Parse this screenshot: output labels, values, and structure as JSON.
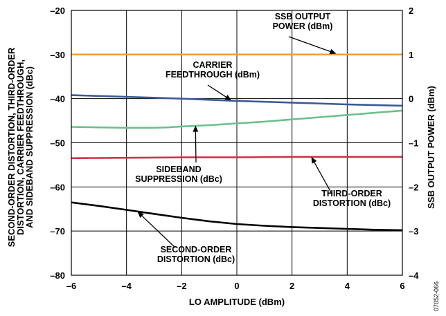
{
  "chart_data": {
    "type": "line",
    "x_axis": {
      "label": "LO AMPLITUDE (dBm)",
      "range": [
        -6,
        6
      ],
      "ticks": [
        -6,
        -4,
        -2,
        0,
        2,
        4,
        6
      ],
      "tick_labels": [
        "–6",
        "–4",
        "–2",
        "0",
        "2",
        "4",
        "6"
      ]
    },
    "y_axis_left": {
      "label_lines": [
        "SECOND-ORDER DISTORTION, THIRD-ORDER",
        "DISTORTION, CARRIER FEEDTHROUGH,",
        "AND SIDEBAND SUPPRESSION (dBc)"
      ],
      "range": [
        -80,
        -20
      ],
      "ticks": [
        -80,
        -70,
        -60,
        -50,
        -40,
        -30,
        -20
      ],
      "tick_labels": [
        "–80",
        "–70",
        "–60",
        "–50",
        "–40",
        "–30",
        "–20"
      ]
    },
    "y_axis_right": {
      "label": "SSB OUTPUT POWER (dBm)",
      "range": [
        -4,
        2
      ],
      "ticks": [
        -4,
        -3,
        -2,
        -1,
        0,
        1,
        2
      ],
      "tick_labels": [
        "–4",
        "–3",
        "–2",
        "–1",
        "0",
        "1",
        "2"
      ]
    },
    "grid": true,
    "series": [
      {
        "name": "SSB OUTPUT POWER (dBm)",
        "axis": "right",
        "color": "#E8A33A",
        "x": [
          -6,
          -4,
          -2,
          0,
          2,
          4,
          6
        ],
        "y": [
          1.0,
          1.0,
          1.0,
          1.0,
          1.0,
          1.0,
          1.0
        ]
      },
      {
        "name": "CARRIER FEEDTHROUGH (dBm)",
        "axis": "left",
        "color": "#3A5A98",
        "x": [
          -6,
          -4,
          -2,
          0,
          2,
          4,
          6
        ],
        "y": [
          -39.2,
          -39.6,
          -40.0,
          -40.5,
          -40.9,
          -41.3,
          -41.6
        ]
      },
      {
        "name": "SIDEBAND SUPPRESSION (dBc)",
        "axis": "left",
        "color": "#6DBF8C",
        "x": [
          -6,
          -5,
          -4,
          -3,
          -2.5,
          -2,
          -1,
          0,
          1,
          2,
          3,
          4,
          5,
          6
        ],
        "y": [
          -46.4,
          -46.5,
          -46.6,
          -46.6,
          -46.5,
          -46.3,
          -46.0,
          -45.6,
          -45.2,
          -44.7,
          -44.2,
          -43.7,
          -43.2,
          -42.7
        ]
      },
      {
        "name": "THIRD-ORDER DISTORTION (dBc)",
        "axis": "left",
        "color": "#D62F4A",
        "x": [
          -6,
          -4,
          -2,
          0,
          2,
          4,
          6
        ],
        "y": [
          -53.5,
          -53.4,
          -53.3,
          -53.3,
          -53.2,
          -53.2,
          -53.2
        ]
      },
      {
        "name": "SECOND-ORDER DISTORTION (dBc)",
        "axis": "left",
        "color": "#000000",
        "x": [
          -6,
          -5,
          -4,
          -3,
          -2,
          -1,
          0,
          1,
          2,
          3,
          4,
          5,
          6
        ],
        "y": [
          -63.5,
          -64.3,
          -65.2,
          -66.1,
          -67.0,
          -67.8,
          -68.4,
          -68.8,
          -69.1,
          -69.3,
          -69.5,
          -69.7,
          -69.8
        ]
      }
    ],
    "annotations": [
      {
        "name": "ssb-annotation",
        "lines": [
          "SSB OUTPUT",
          "POWER (dBm)"
        ],
        "series": 0,
        "arrow_to": {
          "x": 3.6,
          "y": -29.8
        }
      },
      {
        "name": "carrier-annotation",
        "lines": [
          "CARRIER",
          "FEEDTHROUGH (dBm)"
        ],
        "series": 1,
        "arrow_to": {
          "x": -0.2,
          "y": -40.4
        }
      },
      {
        "name": "sideband-annotation",
        "lines": [
          "SIDEBAND",
          "SUPPRESSION (dBc)"
        ],
        "series": 2,
        "arrow_to": {
          "x": -1.5,
          "y": -46.1
        }
      },
      {
        "name": "third-order-annotation",
        "lines": [
          "THIRD-ORDER",
          "DISTORTION (dBc)"
        ],
        "series": 3,
        "arrow_to": {
          "x": 2.7,
          "y": -53.2
        }
      },
      {
        "name": "second-order-annotation",
        "lines": [
          "SECOND-ORDER",
          "DISTORTION (dBc)"
        ],
        "series": 4,
        "arrow_to": {
          "x": -3.6,
          "y": -65.6
        }
      }
    ],
    "figure_id": "07052-066"
  }
}
